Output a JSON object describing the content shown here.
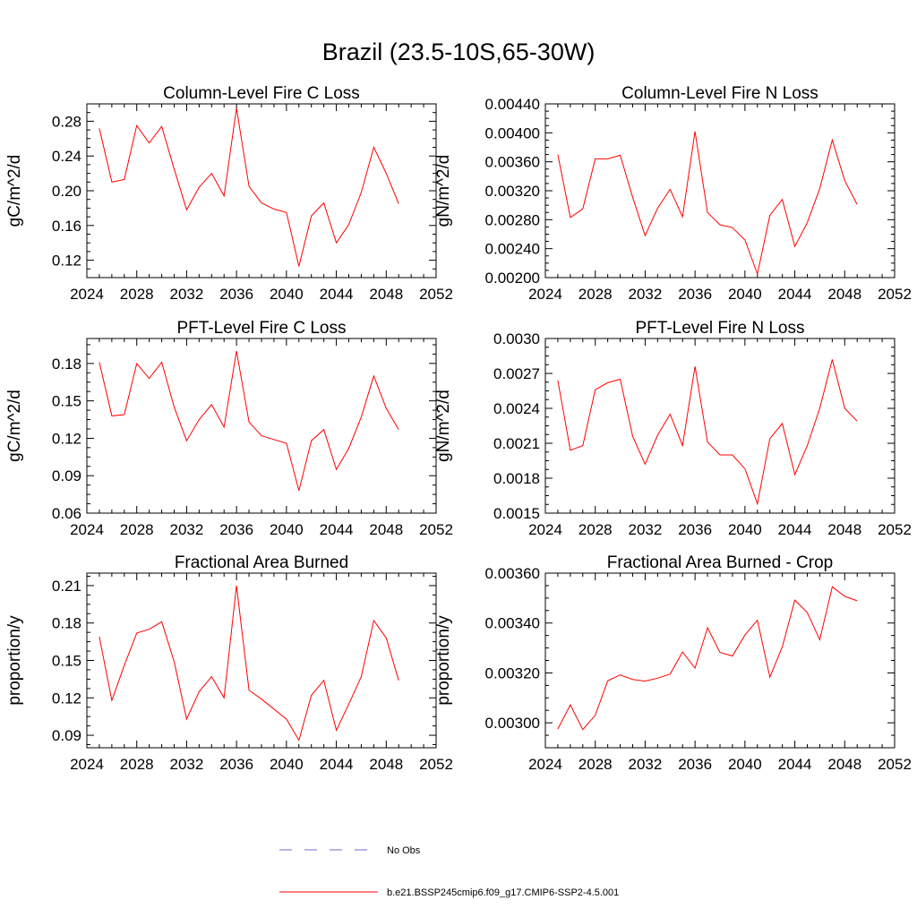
{
  "figure": {
    "title": "Brazil (23.5-10S,65-30W)"
  },
  "legend": {
    "items": [
      {
        "label": "No Obs",
        "color": "#6b6bd6",
        "style": "dashed"
      },
      {
        "label": "b.e21.BSSP245cmip6.f09_g17.CMIP6-SSP2-4.5.001",
        "color": "#ff0000",
        "style": "solid"
      }
    ]
  },
  "chart_data": [
    {
      "type": "line",
      "title": "Column-Level Fire C Loss",
      "ylabel": "gC/m^2/d",
      "xlim": [
        2024,
        2052
      ],
      "ylim": [
        0.1,
        0.3
      ],
      "xticks": [
        "2024",
        "2028",
        "2032",
        "2036",
        "2040",
        "2044",
        "2048",
        "2052"
      ],
      "yticks": [
        "0.12",
        "0.16",
        "0.20",
        "0.24",
        "0.28"
      ],
      "x": [
        2025,
        2026,
        2027,
        2028,
        2029,
        2030,
        2031,
        2032,
        2033,
        2034,
        2035,
        2036,
        2037,
        2038,
        2039,
        2040,
        2041,
        2042,
        2043,
        2044,
        2045,
        2046,
        2047,
        2048,
        2049
      ],
      "series": [
        {
          "name": "b.e21.BSSP245cmip6.f09_g17.CMIP6-SSP2-4.5.001",
          "color": "#ff0000",
          "values": [
            0.272,
            0.21,
            0.213,
            0.275,
            0.255,
            0.274,
            0.225,
            0.178,
            0.204,
            0.22,
            0.194,
            0.295,
            0.205,
            0.186,
            0.179,
            0.175,
            0.113,
            0.171,
            0.186,
            0.14,
            0.161,
            0.198,
            0.25,
            0.22,
            0.185
          ]
        }
      ]
    },
    {
      "type": "line",
      "title": "Column-Level Fire N Loss",
      "ylabel": "gN/m^2/d",
      "xlim": [
        2024,
        2052
      ],
      "ylim": [
        0.002,
        0.0044
      ],
      "xticks": [
        "2024",
        "2028",
        "2032",
        "2036",
        "2040",
        "2044",
        "2048",
        "2052"
      ],
      "yticks": [
        "0.00200",
        "0.00240",
        "0.00280",
        "0.00320",
        "0.00360",
        "0.00400",
        "0.00440"
      ],
      "x": [
        2025,
        2026,
        2027,
        2028,
        2029,
        2030,
        2031,
        2032,
        2033,
        2034,
        2035,
        2036,
        2037,
        2038,
        2039,
        2040,
        2041,
        2042,
        2043,
        2044,
        2045,
        2046,
        2047,
        2048,
        2049
      ],
      "series": [
        {
          "name": "b.e21.BSSP245cmip6.f09_g17.CMIP6-SSP2-4.5.001",
          "color": "#ff0000",
          "values": [
            0.0037,
            0.00283,
            0.00295,
            0.00364,
            0.00364,
            0.00369,
            0.00311,
            0.00258,
            0.00296,
            0.00322,
            0.00284,
            0.00402,
            0.0029,
            0.00273,
            0.00269,
            0.00252,
            0.00205,
            0.00286,
            0.00308,
            0.00243,
            0.00276,
            0.00323,
            0.0039,
            0.00334,
            0.00301
          ]
        }
      ]
    },
    {
      "type": "line",
      "title": "PFT-Level Fire C Loss",
      "ylabel": "gC/m^2/d",
      "xlim": [
        2024,
        2052
      ],
      "ylim": [
        0.06,
        0.2
      ],
      "xticks": [
        "2024",
        "2028",
        "2032",
        "2036",
        "2040",
        "2044",
        "2048",
        "2052"
      ],
      "yticks": [
        "0.06",
        "0.09",
        "0.12",
        "0.15",
        "0.18"
      ],
      "x": [
        2025,
        2026,
        2027,
        2028,
        2029,
        2030,
        2031,
        2032,
        2033,
        2034,
        2035,
        2036,
        2037,
        2038,
        2039,
        2040,
        2041,
        2042,
        2043,
        2044,
        2045,
        2046,
        2047,
        2048,
        2049
      ],
      "series": [
        {
          "name": "b.e21.BSSP245cmip6.f09_g17.CMIP6-SSP2-4.5.001",
          "color": "#ff0000",
          "values": [
            0.181,
            0.138,
            0.139,
            0.18,
            0.168,
            0.181,
            0.145,
            0.118,
            0.135,
            0.147,
            0.129,
            0.19,
            0.133,
            0.122,
            0.119,
            0.116,
            0.078,
            0.118,
            0.127,
            0.095,
            0.112,
            0.137,
            0.17,
            0.144,
            0.127
          ]
        }
      ]
    },
    {
      "type": "line",
      "title": "PFT-Level Fire N Loss",
      "ylabel": "gN/m^2/d",
      "xlim": [
        2024,
        2052
      ],
      "ylim": [
        0.0015,
        0.003
      ],
      "xticks": [
        "2024",
        "2028",
        "2032",
        "2036",
        "2040",
        "2044",
        "2048",
        "2052"
      ],
      "yticks": [
        "0.0015",
        "0.0018",
        "0.0021",
        "0.0024",
        "0.0027",
        "0.0030"
      ],
      "x": [
        2025,
        2026,
        2027,
        2028,
        2029,
        2030,
        2031,
        2032,
        2033,
        2034,
        2035,
        2036,
        2037,
        2038,
        2039,
        2040,
        2041,
        2042,
        2043,
        2044,
        2045,
        2046,
        2047,
        2048,
        2049
      ],
      "series": [
        {
          "name": "b.e21.BSSP245cmip6.f09_g17.CMIP6-SSP2-4.5.001",
          "color": "#ff0000",
          "values": [
            0.00264,
            0.00204,
            0.00208,
            0.00256,
            0.00262,
            0.00265,
            0.00216,
            0.00192,
            0.00217,
            0.00235,
            0.00208,
            0.00276,
            0.00211,
            0.002,
            0.002,
            0.00188,
            0.00158,
            0.00214,
            0.00227,
            0.00183,
            0.00208,
            0.0024,
            0.00282,
            0.0024,
            0.00229
          ]
        }
      ]
    },
    {
      "type": "line",
      "title": "Fractional Area Burned",
      "ylabel": "proportion/y",
      "xlim": [
        2024,
        2052
      ],
      "ylim": [
        0.08,
        0.22
      ],
      "xticks": [
        "2024",
        "2028",
        "2032",
        "2036",
        "2040",
        "2044",
        "2048",
        "2052"
      ],
      "yticks": [
        "0.09",
        "0.12",
        "0.15",
        "0.18",
        "0.21"
      ],
      "x": [
        2025,
        2026,
        2027,
        2028,
        2029,
        2030,
        2031,
        2032,
        2033,
        2034,
        2035,
        2036,
        2037,
        2038,
        2039,
        2040,
        2041,
        2042,
        2043,
        2044,
        2045,
        2046,
        2047,
        2048,
        2049
      ],
      "series": [
        {
          "name": "b.e21.BSSP245cmip6.f09_g17.CMIP6-SSP2-4.5.001",
          "color": "#ff0000",
          "values": [
            0.169,
            0.118,
            0.146,
            0.172,
            0.175,
            0.181,
            0.149,
            0.103,
            0.125,
            0.137,
            0.12,
            0.21,
            0.126,
            0.119,
            0.111,
            0.103,
            0.086,
            0.122,
            0.134,
            0.094,
            0.115,
            0.137,
            0.182,
            0.168,
            0.134
          ]
        }
      ]
    },
    {
      "type": "line",
      "title": "Fractional Area Burned - Crop",
      "ylabel": "proportion/y",
      "xlim": [
        2024,
        2052
      ],
      "ylim": [
        0.0029,
        0.0036
      ],
      "xticks": [
        "2024",
        "2028",
        "2032",
        "2036",
        "2040",
        "2044",
        "2048",
        "2052"
      ],
      "yticks": [
        "0.00300",
        "0.00320",
        "0.00340",
        "0.00360"
      ],
      "x": [
        2025,
        2026,
        2027,
        2028,
        2029,
        2030,
        2031,
        2032,
        2033,
        2034,
        2035,
        2036,
        2037,
        2038,
        2039,
        2040,
        2041,
        2042,
        2043,
        2044,
        2045,
        2046,
        2047,
        2048,
        2049
      ],
      "series": [
        {
          "name": "b.e21.BSSP245cmip6.f09_g17.CMIP6-SSP2-4.5.001",
          "color": "#ff0000",
          "values": [
            0.002975,
            0.003072,
            0.002973,
            0.00303,
            0.003168,
            0.003192,
            0.003174,
            0.003167,
            0.003179,
            0.003195,
            0.003284,
            0.003219,
            0.003381,
            0.003282,
            0.003268,
            0.003352,
            0.003411,
            0.003183,
            0.003305,
            0.003492,
            0.003442,
            0.003333,
            0.003545,
            0.003507,
            0.003489
          ]
        }
      ]
    }
  ]
}
